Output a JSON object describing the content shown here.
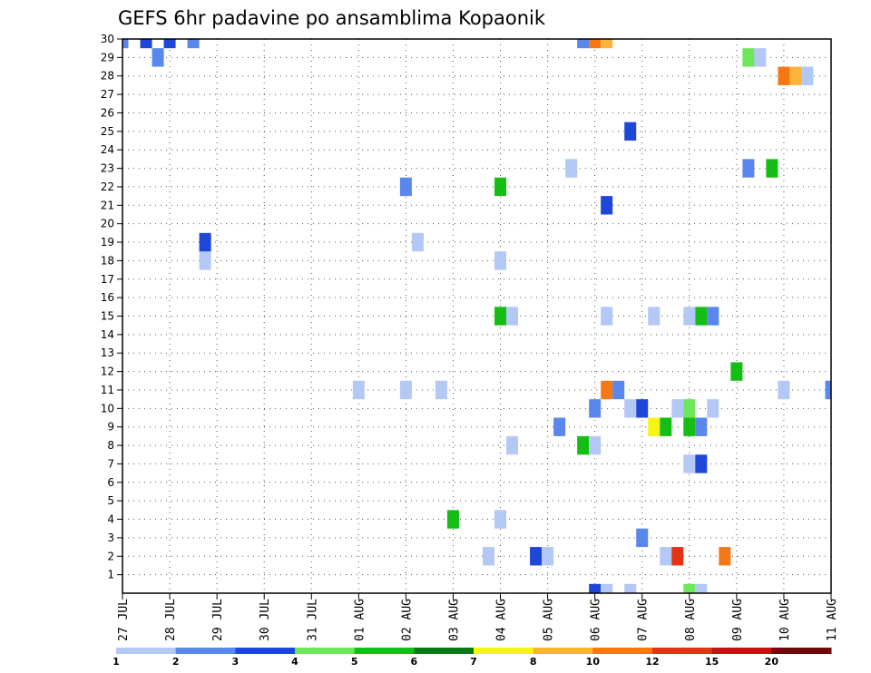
{
  "chart_data": {
    "type": "heatmap",
    "title": "GEFS 6hr padavine po ansamblima Kopaonik",
    "x_tick_labels": [
      "27 JUL",
      "28 JUL",
      "29 JUL",
      "30 JUL",
      "31 JUL",
      "01 AUG",
      "02 AUG",
      "03 AUG",
      "04 AUG",
      "05 AUG",
      "06 AUG",
      "07 AUG",
      "08 AUG",
      "09 AUG",
      "10 AUG",
      "11 AUG"
    ],
    "xlim": [
      0,
      15
    ],
    "ylim": [
      0,
      30
    ],
    "y_tick_labels": [
      "1",
      "2",
      "3",
      "4",
      "5",
      "6",
      "7",
      "8",
      "9",
      "10",
      "11",
      "12",
      "13",
      "14",
      "15",
      "16",
      "17",
      "18",
      "19",
      "20",
      "21",
      "22",
      "23",
      "24",
      "25",
      "26",
      "27",
      "28",
      "29",
      "30"
    ],
    "grid": true,
    "colorbar": {
      "labels": [
        "1",
        "2",
        "3",
        "4",
        "5",
        "6",
        "7",
        "8",
        "10",
        "12",
        "15",
        "20"
      ],
      "colors": [
        "#b4c8f5",
        "#5a87eb",
        "#1e46d7",
        "#6ee65a",
        "#14be14",
        "#0a7814",
        "#f5f514",
        "#fab43c",
        "#f57814",
        "#e63214",
        "#c31414",
        "#6e0a0a"
      ]
    },
    "cells": [
      {
        "x": 0.0,
        "y": 30,
        "v": 2
      },
      {
        "x": 0.5,
        "y": 30,
        "v": 3
      },
      {
        "x": 0.75,
        "y": 29,
        "v": 2
      },
      {
        "x": 1.0,
        "y": 30,
        "v": 3
      },
      {
        "x": 1.5,
        "y": 30,
        "v": 2
      },
      {
        "x": 1.75,
        "y": 18,
        "v": 1
      },
      {
        "x": 1.75,
        "y": 19,
        "v": 3
      },
      {
        "x": 5.0,
        "y": 11,
        "v": 1
      },
      {
        "x": 6.0,
        "y": 22,
        "v": 2
      },
      {
        "x": 6.0,
        "y": 11,
        "v": 1
      },
      {
        "x": 6.25,
        "y": 19,
        "v": 1
      },
      {
        "x": 6.75,
        "y": 11,
        "v": 1
      },
      {
        "x": 7.0,
        "y": 4,
        "v": 5
      },
      {
        "x": 7.75,
        "y": 2,
        "v": 1
      },
      {
        "x": 8.0,
        "y": 22,
        "v": 5
      },
      {
        "x": 8.0,
        "y": 18,
        "v": 1
      },
      {
        "x": 8.0,
        "y": 15,
        "v": 5
      },
      {
        "x": 8.0,
        "y": 4,
        "v": 1
      },
      {
        "x": 8.25,
        "y": 15,
        "v": 1
      },
      {
        "x": 8.25,
        "y": 8,
        "v": 1
      },
      {
        "x": 8.75,
        "y": 2,
        "v": 3
      },
      {
        "x": 9.0,
        "y": 2,
        "v": 1
      },
      {
        "x": 9.25,
        "y": 9,
        "v": 2
      },
      {
        "x": 9.5,
        "y": 23,
        "v": 1
      },
      {
        "x": 9.75,
        "y": 30,
        "v": 2
      },
      {
        "x": 10.0,
        "y": 30,
        "v": 10
      },
      {
        "x": 9.75,
        "y": 8,
        "v": 5
      },
      {
        "x": 10.0,
        "y": 8,
        "v": 1
      },
      {
        "x": 10.0,
        "y": 10,
        "v": 2
      },
      {
        "x": 10.0,
        "y": 0,
        "v": 3
      },
      {
        "x": 10.25,
        "y": 30,
        "v": 8
      },
      {
        "x": 10.25,
        "y": 21,
        "v": 3
      },
      {
        "x": 10.25,
        "y": 15,
        "v": 1
      },
      {
        "x": 10.25,
        "y": 11,
        "v": 10
      },
      {
        "x": 10.5,
        "y": 11,
        "v": 2
      },
      {
        "x": 10.25,
        "y": 0,
        "v": 1
      },
      {
        "x": 10.75,
        "y": 25,
        "v": 3
      },
      {
        "x": 10.75,
        "y": 10,
        "v": 1
      },
      {
        "x": 10.75,
        "y": 0,
        "v": 1
      },
      {
        "x": 11.0,
        "y": 10,
        "v": 3
      },
      {
        "x": 11.0,
        "y": 3,
        "v": 2
      },
      {
        "x": 11.25,
        "y": 15,
        "v": 1
      },
      {
        "x": 11.25,
        "y": 9,
        "v": 7
      },
      {
        "x": 11.5,
        "y": 9,
        "v": 5
      },
      {
        "x": 11.5,
        "y": 2,
        "v": 1
      },
      {
        "x": 11.75,
        "y": 2,
        "v": 12
      },
      {
        "x": 11.75,
        "y": 10,
        "v": 1
      },
      {
        "x": 12.0,
        "y": 15,
        "v": 1
      },
      {
        "x": 12.0,
        "y": 10,
        "v": 4
      },
      {
        "x": 12.0,
        "y": 9,
        "v": 5
      },
      {
        "x": 12.0,
        "y": 7,
        "v": 1
      },
      {
        "x": 12.0,
        "y": 0,
        "v": 4
      },
      {
        "x": 12.25,
        "y": 15,
        "v": 5
      },
      {
        "x": 12.25,
        "y": 9,
        "v": 2
      },
      {
        "x": 12.25,
        "y": 7,
        "v": 3
      },
      {
        "x": 12.25,
        "y": 0,
        "v": 1
      },
      {
        "x": 12.5,
        "y": 15,
        "v": 2
      },
      {
        "x": 12.5,
        "y": 10,
        "v": 1
      },
      {
        "x": 12.75,
        "y": 2,
        "v": 10
      },
      {
        "x": 13.0,
        "y": 12,
        "v": 5
      },
      {
        "x": 13.25,
        "y": 29,
        "v": 4
      },
      {
        "x": 13.5,
        "y": 29,
        "v": 1
      },
      {
        "x": 13.25,
        "y": 23,
        "v": 2
      },
      {
        "x": 13.75,
        "y": 23,
        "v": 5
      },
      {
        "x": 14.0,
        "y": 28,
        "v": 10
      },
      {
        "x": 14.25,
        "y": 28,
        "v": 8
      },
      {
        "x": 14.5,
        "y": 28,
        "v": 1
      },
      {
        "x": 14.0,
        "y": 11,
        "v": 1
      },
      {
        "x": 15.0,
        "y": 11,
        "v": 2
      }
    ]
  }
}
